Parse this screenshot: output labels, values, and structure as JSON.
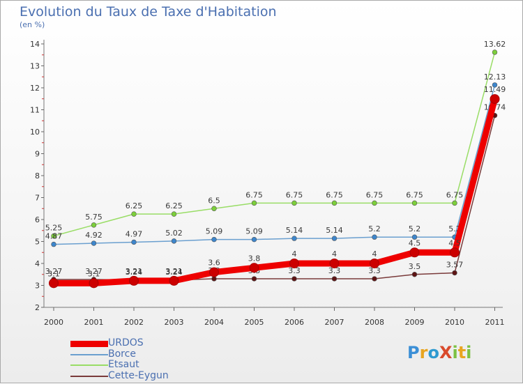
{
  "title": "Evolution du Taux de Taxe d'Habitation",
  "subtitle": "(en %)",
  "brand": {
    "text": "ProXiti",
    "letters": [
      "P",
      "r",
      "o",
      "X",
      "i",
      "t",
      "i"
    ],
    "colors": [
      "#3b8fd6",
      "#e8a520",
      "#2e9ad0",
      "#d94a2b",
      "#7cc143",
      "#e8a520",
      "#7cc143"
    ]
  },
  "chart_data": {
    "type": "line",
    "x": [
      "2000",
      "2001",
      "2002",
      "2003",
      "2004",
      "2005",
      "2006",
      "2007",
      "2008",
      "2009",
      "2010",
      "2011"
    ],
    "ylim": [
      2,
      14
    ],
    "yticks": [
      2,
      3,
      4,
      5,
      6,
      7,
      8,
      9,
      10,
      11,
      12,
      13,
      14
    ],
    "grid": false,
    "legend_position": "bottom-left",
    "series": [
      {
        "name": "Etsaut",
        "color": "#99dd66",
        "point_color": "#7ccf3a",
        "values": [
          5.25,
          5.75,
          6.25,
          6.25,
          6.5,
          6.75,
          6.75,
          6.75,
          6.75,
          6.75,
          6.75,
          13.62
        ],
        "labels": [
          "5.25",
          "5.75",
          "6.25",
          "6.25",
          "6.5",
          "6.75",
          "6.75",
          "6.75",
          "6.75",
          "6.75",
          "6.75",
          "13.62"
        ]
      },
      {
        "name": "Borce",
        "color": "#6a9fcf",
        "point_color": "#3d86cc",
        "values": [
          4.87,
          4.92,
          4.97,
          5.02,
          5.09,
          5.09,
          5.14,
          5.14,
          5.2,
          5.2,
          5.2,
          12.13
        ],
        "labels": [
          "4.87",
          "4.92",
          "4.97",
          "5.02",
          "5.09",
          "5.09",
          "5.14",
          "5.14",
          "5.2",
          "5.2",
          "5.2",
          "12.13"
        ]
      },
      {
        "name": "Cette-Eygun",
        "color": "#7a3a3a",
        "point_color": "#5e1414",
        "values": [
          3.27,
          3.27,
          3.24,
          3.24,
          3.3,
          3.3,
          3.3,
          3.3,
          3.3,
          3.5,
          3.57,
          10.74
        ],
        "labels": [
          "3.27",
          "3.27",
          "3.24",
          "3.24",
          "3.3",
          "3.3",
          "3.3",
          "3.3",
          "3.3",
          "3.5",
          "3.57",
          "10.74"
        ]
      },
      {
        "name": "URDOS",
        "color": "#ee0000",
        "point_color": "#cc0000",
        "values": [
          3.1,
          3.1,
          3.21,
          3.21,
          3.6,
          3.8,
          4,
          4,
          4,
          4.5,
          4.5,
          11.49
        ],
        "labels": [
          "3.1",
          "3.1",
          "3.21",
          "3.21",
          "3.6",
          "3.8",
          "4",
          "4",
          "4",
          "4.5",
          "4.5",
          "11.49"
        ]
      }
    ],
    "legend_order": [
      "URDOS",
      "Borce",
      "Etsaut",
      "Cette-Eygun"
    ]
  }
}
